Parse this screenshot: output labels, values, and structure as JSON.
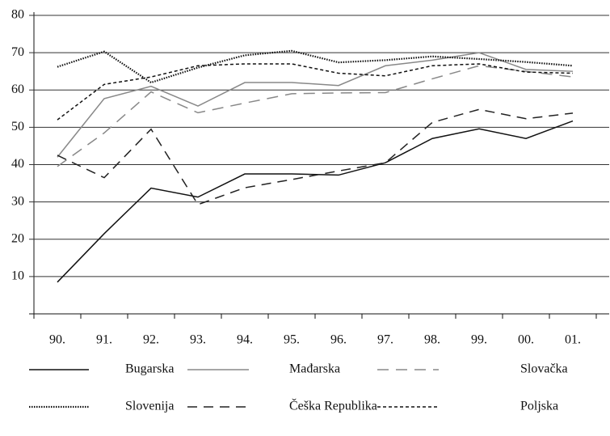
{
  "chart_data": {
    "type": "line",
    "categories": [
      "90.",
      "91.",
      "92.",
      "93.",
      "94.",
      "95.",
      "96.",
      "97.",
      "98.",
      "99.",
      "00.",
      "01."
    ],
    "series": [
      {
        "name": "Bugarska",
        "color": "#111111",
        "dash": "none",
        "values": [
          8.5,
          21.5,
          33.7,
          31.3,
          37.5,
          37.5,
          37.2,
          40.5,
          47,
          49.6,
          47,
          51.7
        ]
      },
      {
        "name": "Mađarska",
        "color": "#888888",
        "dash": "none",
        "values": [
          42,
          57.7,
          61,
          55.7,
          62,
          62,
          61.2,
          66.5,
          68,
          70,
          65.5,
          65
        ]
      },
      {
        "name": "Slovačka",
        "color": "#888888",
        "dash": "14 9",
        "values": [
          39.5,
          48.5,
          59.5,
          53.9,
          56.5,
          59,
          59.2,
          59.3,
          63,
          66.5,
          65,
          63.5
        ]
      },
      {
        "name": "Slovenija",
        "color": "#111111",
        "dash": "1.5 1.5",
        "values": [
          66.2,
          70.3,
          62,
          66,
          69.3,
          70.5,
          67.4,
          68,
          69,
          68.3,
          67.5,
          66.5
        ]
      },
      {
        "name": "Češka Republika",
        "color": "#222222",
        "dash": "12 8",
        "values": [
          42.5,
          36.5,
          49.5,
          29.3,
          33.8,
          36,
          38.3,
          40.5,
          51.3,
          54.8,
          52.3,
          53.8
        ]
      },
      {
        "name": "Poljska",
        "color": "#111111",
        "dash": "4 3",
        "values": [
          52,
          61.5,
          63.5,
          66.5,
          67,
          67,
          64.5,
          63.8,
          66.5,
          67,
          64.8,
          64.5
        ]
      }
    ],
    "ylim": [
      0,
      80
    ],
    "yticks": [
      10,
      20,
      30,
      40,
      50,
      60,
      70,
      80
    ],
    "grid": true
  }
}
